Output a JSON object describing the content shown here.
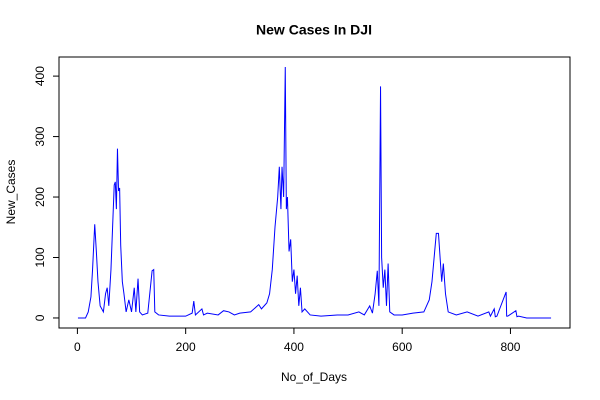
{
  "chart_data": {
    "type": "line",
    "title": "New Cases In DJI",
    "x_label": "No_of_Days",
    "y_label": "New_Cases",
    "x": [
      1,
      15,
      20,
      25,
      28,
      32,
      35,
      38,
      42,
      48,
      52,
      55,
      58,
      62,
      65,
      68,
      70,
      72,
      74,
      76,
      78,
      80,
      83,
      86,
      90,
      95,
      100,
      105,
      108,
      112,
      115,
      120,
      130,
      138,
      141,
      143,
      150,
      170,
      200,
      212,
      215,
      218,
      230,
      233,
      240,
      260,
      270,
      280,
      290,
      300,
      320,
      335,
      340,
      345,
      350,
      355,
      360,
      365,
      370,
      373,
      376,
      378,
      381,
      384,
      386,
      388,
      391,
      394,
      397,
      400,
      403,
      406,
      409,
      412,
      415,
      420,
      430,
      450,
      480,
      500,
      520,
      530,
      540,
      545,
      550,
      554,
      557,
      560,
      562,
      565,
      568,
      571,
      574,
      577,
      585,
      600,
      620,
      640,
      650,
      655,
      660,
      663,
      667,
      670,
      673,
      676,
      680,
      685,
      700,
      720,
      740,
      760,
      763,
      770,
      772,
      775,
      792,
      793,
      795,
      810,
      812,
      815,
      830,
      875
    ],
    "series": [
      {
        "name": "New_Cases",
        "color": "#0000ff",
        "values": [
          0,
          0,
          10,
          35,
          80,
          155,
          110,
          60,
          20,
          10,
          40,
          50,
          20,
          80,
          150,
          220,
          225,
          180,
          280,
          210,
          215,
          120,
          60,
          40,
          10,
          30,
          10,
          50,
          10,
          65,
          10,
          5,
          8,
          78,
          80,
          10,
          5,
          3,
          3,
          8,
          28,
          5,
          15,
          5,
          8,
          5,
          12,
          10,
          5,
          8,
          10,
          22,
          15,
          20,
          25,
          40,
          80,
          150,
          200,
          250,
          180,
          250,
          200,
          415,
          180,
          200,
          110,
          130,
          60,
          80,
          40,
          70,
          20,
          50,
          10,
          15,
          5,
          3,
          5,
          5,
          10,
          5,
          20,
          8,
          40,
          78,
          20,
          383,
          100,
          50,
          80,
          20,
          90,
          10,
          5,
          5,
          8,
          10,
          30,
          60,
          110,
          140,
          140,
          100,
          60,
          90,
          40,
          10,
          5,
          10,
          3,
          10,
          3,
          15,
          2,
          3,
          43,
          3,
          3,
          12,
          2,
          3,
          0,
          0
        ]
      }
    ],
    "xlim": [
      -34,
      910
    ],
    "ylim": [
      -16.6,
      431.6
    ],
    "xticks": [
      0,
      200,
      400,
      600,
      800
    ],
    "yticks": [
      0,
      100,
      200,
      300,
      400
    ]
  }
}
